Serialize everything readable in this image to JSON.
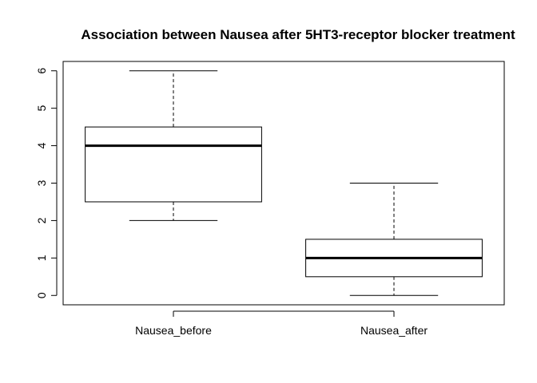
{
  "chart_data": {
    "type": "box",
    "title": "Association between Nausea after 5HT3-receptor blocker treatment",
    "xlabel": "",
    "ylabel": "",
    "ylim": [
      -0.25,
      6.25
    ],
    "yticks": [
      "0",
      "1",
      "2",
      "3",
      "4",
      "5",
      "6"
    ],
    "categories": [
      "Nausea_before",
      "Nausea_after"
    ],
    "boxes": [
      {
        "category": "Nausea_before",
        "min": 2,
        "q1": 2.5,
        "median": 4,
        "q3": 4.5,
        "max": 6
      },
      {
        "category": "Nausea_after",
        "min": 0,
        "q1": 0.5,
        "median": 1,
        "q3": 1.5,
        "max": 3
      }
    ],
    "colors": {
      "box_fill": "#ffffff",
      "stroke": "#000000"
    },
    "grid": false,
    "legend": "none"
  }
}
